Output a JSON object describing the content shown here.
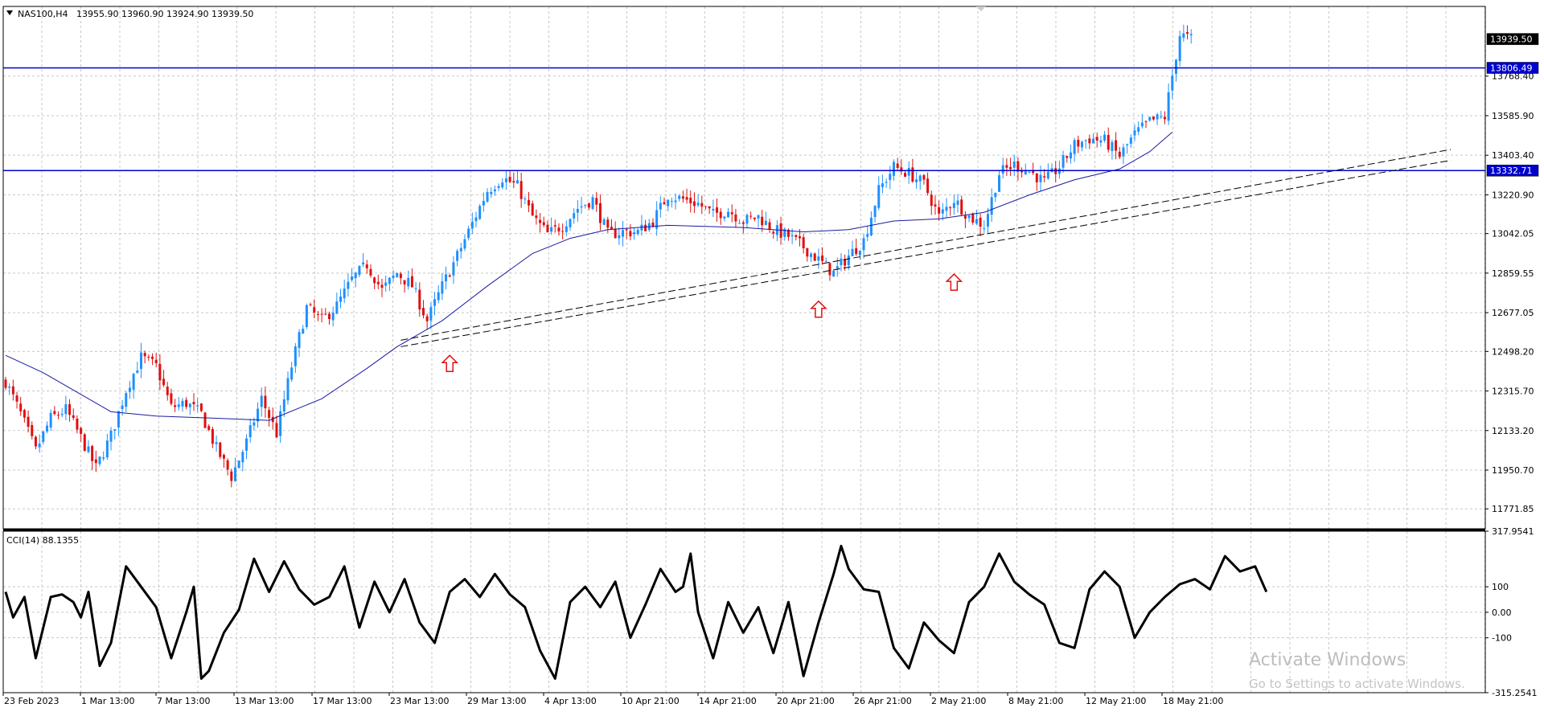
{
  "header": {
    "symbol_label": "NAS100,H4",
    "ohlc_text": "13955.90 13960.90 13924.90 13939.50"
  },
  "indicator_label": "CCI(14) 88.1355",
  "watermark": {
    "title": "Activate Windows",
    "subtitle": "Go to Settings to activate Windows."
  },
  "colors": {
    "bull": "#1e90ff",
    "bear": "#e01010",
    "ma": "#1a1aa0",
    "hline": "#0000cc",
    "cci": "#000000",
    "arrow": "#e01010",
    "grid": "#c8c8c8"
  },
  "chart_data": [
    {
      "type": "candlestick",
      "ylim": [
        11680,
        14090
      ],
      "y_ticks": [
        13768.4,
        13585.9,
        13403.4,
        13220.9,
        13042.05,
        12859.55,
        12677.05,
        12498.2,
        12315.7,
        12133.2,
        11950.7,
        11771.85
      ],
      "x_ticks": [
        "23 Feb 2023",
        "1 Mar 13:00",
        "7 Mar 13:00",
        "13 Mar 13:00",
        "17 Mar 13:00",
        "23 Mar 13:00",
        "29 Mar 13:00",
        "4 Apr 13:00",
        "10 Apr 21:00",
        "14 Apr 21:00",
        "20 Apr 21:00",
        "26 Apr 21:00",
        "2 May 21:00",
        "8 May 21:00",
        "12 May 21:00",
        "18 May 21:00"
      ],
      "close_path": [
        [
          0,
          12360
        ],
        [
          4,
          12210
        ],
        [
          8,
          12040
        ],
        [
          12,
          12190
        ],
        [
          16,
          12230
        ],
        [
          20,
          12100
        ],
        [
          24,
          11960
        ],
        [
          28,
          12110
        ],
        [
          32,
          12320
        ],
        [
          36,
          12470
        ],
        [
          40,
          12430
        ],
        [
          44,
          12240
        ],
        [
          48,
          12260
        ],
        [
          52,
          12210
        ],
        [
          56,
          12050
        ],
        [
          60,
          11920
        ],
        [
          64,
          12080
        ],
        [
          68,
          12280
        ],
        [
          72,
          12120
        ],
        [
          76,
          12430
        ],
        [
          80,
          12700
        ],
        [
          84,
          12640
        ],
        [
          88,
          12710
        ],
        [
          92,
          12830
        ],
        [
          96,
          12900
        ],
        [
          100,
          12780
        ],
        [
          104,
          12860
        ],
        [
          108,
          12800
        ],
        [
          112,
          12640
        ],
        [
          116,
          12800
        ],
        [
          120,
          12940
        ],
        [
          124,
          13090
        ],
        [
          128,
          13240
        ],
        [
          132,
          13300
        ],
        [
          136,
          13260
        ],
        [
          140,
          13120
        ],
        [
          144,
          13040
        ],
        [
          148,
          13080
        ],
        [
          152,
          13160
        ],
        [
          156,
          13200
        ],
        [
          160,
          13040
        ],
        [
          164,
          13050
        ],
        [
          168,
          13050
        ],
        [
          172,
          13100
        ],
        [
          176,
          13220
        ],
        [
          180,
          13200
        ],
        [
          184,
          13180
        ],
        [
          188,
          13130
        ],
        [
          192,
          13150
        ],
        [
          196,
          13100
        ],
        [
          200,
          13120
        ],
        [
          204,
          13060
        ],
        [
          208,
          13030
        ],
        [
          212,
          12980
        ],
        [
          216,
          12920
        ],
        [
          220,
          12860
        ],
        [
          224,
          12940
        ],
        [
          228,
          13010
        ],
        [
          232,
          13240
        ],
        [
          236,
          13350
        ],
        [
          240,
          13320
        ],
        [
          244,
          13270
        ],
        [
          248,
          13120
        ],
        [
          252,
          13200
        ],
        [
          256,
          13120
        ],
        [
          260,
          13080
        ],
        [
          264,
          13320
        ],
        [
          268,
          13360
        ],
        [
          272,
          13330
        ],
        [
          276,
          13280
        ],
        [
          280,
          13350
        ],
        [
          284,
          13450
        ],
        [
          288,
          13480
        ],
        [
          292,
          13470
        ],
        [
          296,
          13400
        ],
        [
          300,
          13500
        ],
        [
          304,
          13560
        ],
        [
          308,
          13580
        ],
        [
          312,
          13960
        ],
        [
          315,
          13940
        ]
      ],
      "ma_path": [
        [
          0,
          12480
        ],
        [
          10,
          12400
        ],
        [
          20,
          12300
        ],
        [
          28,
          12220
        ],
        [
          40,
          12200
        ],
        [
          56,
          12190
        ],
        [
          70,
          12180
        ],
        [
          84,
          12280
        ],
        [
          96,
          12420
        ],
        [
          104,
          12520
        ],
        [
          116,
          12640
        ],
        [
          128,
          12800
        ],
        [
          140,
          12950
        ],
        [
          150,
          13020
        ],
        [
          160,
          13060
        ],
        [
          176,
          13080
        ],
        [
          196,
          13070
        ],
        [
          212,
          13050
        ],
        [
          224,
          13060
        ],
        [
          236,
          13100
        ],
        [
          248,
          13110
        ],
        [
          260,
          13140
        ],
        [
          272,
          13220
        ],
        [
          284,
          13290
        ],
        [
          296,
          13340
        ],
        [
          304,
          13420
        ],
        [
          310,
          13510
        ]
      ],
      "horizontal_levels": [
        13806.49,
        13332.71
      ],
      "current_price": 13939.5,
      "trendlines": [
        {
          "from": [
            105,
            12550
          ],
          "to": [
            384,
            13430
          ]
        },
        {
          "from": [
            105,
            12520
          ],
          "to": [
            384,
            13380
          ]
        }
      ],
      "arrows": [
        {
          "bar": 118,
          "price": 12480
        },
        {
          "bar": 216,
          "price": 12730
        },
        {
          "bar": 252,
          "price": 12855
        }
      ]
    },
    {
      "type": "line",
      "name": "CCI(14)",
      "ylim": [
        -315.2541,
        317.9541
      ],
      "y_ticks": [
        317.9541,
        100,
        0.0,
        -100,
        -315.2541
      ],
      "path": [
        [
          0,
          80
        ],
        [
          2,
          -20
        ],
        [
          5,
          60
        ],
        [
          8,
          -180
        ],
        [
          12,
          60
        ],
        [
          15,
          70
        ],
        [
          18,
          40
        ],
        [
          20,
          -20
        ],
        [
          22,
          80
        ],
        [
          25,
          -210
        ],
        [
          28,
          -120
        ],
        [
          32,
          180
        ],
        [
          36,
          100
        ],
        [
          40,
          20
        ],
        [
          44,
          -180
        ],
        [
          48,
          0
        ],
        [
          50,
          100
        ],
        [
          52,
          -260
        ],
        [
          54,
          -230
        ],
        [
          58,
          -80
        ],
        [
          62,
          10
        ],
        [
          66,
          210
        ],
        [
          70,
          80
        ],
        [
          74,
          200
        ],
        [
          78,
          90
        ],
        [
          82,
          30
        ],
        [
          86,
          60
        ],
        [
          90,
          180
        ],
        [
          94,
          -60
        ],
        [
          98,
          120
        ],
        [
          102,
          0
        ],
        [
          106,
          130
        ],
        [
          110,
          -40
        ],
        [
          114,
          -120
        ],
        [
          118,
          80
        ],
        [
          122,
          130
        ],
        [
          126,
          60
        ],
        [
          130,
          150
        ],
        [
          134,
          70
        ],
        [
          138,
          20
        ],
        [
          142,
          -150
        ],
        [
          146,
          -260
        ],
        [
          150,
          40
        ],
        [
          154,
          100
        ],
        [
          158,
          20
        ],
        [
          162,
          120
        ],
        [
          166,
          -100
        ],
        [
          170,
          30
        ],
        [
          174,
          170
        ],
        [
          178,
          80
        ],
        [
          180,
          100
        ],
        [
          182,
          230
        ],
        [
          184,
          0
        ],
        [
          188,
          -180
        ],
        [
          192,
          40
        ],
        [
          196,
          -80
        ],
        [
          200,
          20
        ],
        [
          204,
          -160
        ],
        [
          208,
          40
        ],
        [
          212,
          -250
        ],
        [
          216,
          -40
        ],
        [
          220,
          150
        ],
        [
          222,
          260
        ],
        [
          224,
          170
        ],
        [
          228,
          90
        ],
        [
          232,
          80
        ],
        [
          236,
          -140
        ],
        [
          240,
          -220
        ],
        [
          244,
          -40
        ],
        [
          248,
          -110
        ],
        [
          252,
          -160
        ],
        [
          256,
          40
        ],
        [
          260,
          100
        ],
        [
          264,
          230
        ],
        [
          268,
          120
        ],
        [
          272,
          70
        ],
        [
          276,
          30
        ],
        [
          280,
          -120
        ],
        [
          284,
          -140
        ],
        [
          288,
          90
        ],
        [
          292,
          160
        ],
        [
          296,
          100
        ],
        [
          300,
          -100
        ],
        [
          304,
          0
        ],
        [
          308,
          60
        ],
        [
          312,
          110
        ],
        [
          316,
          130
        ],
        [
          320,
          90
        ],
        [
          324,
          220
        ],
        [
          328,
          160
        ],
        [
          332,
          180
        ],
        [
          335,
          80
        ]
      ]
    }
  ]
}
